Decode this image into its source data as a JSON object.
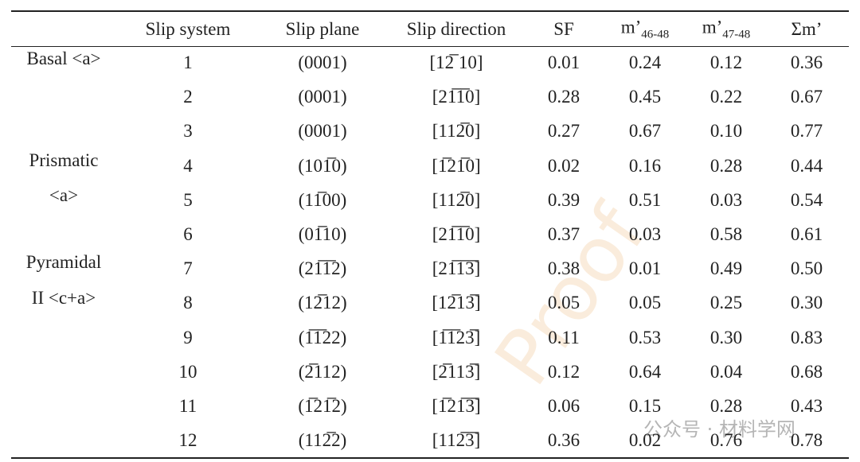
{
  "table": {
    "header": [
      {
        "text": "Slip system"
      },
      {
        "text": "Slip plane"
      },
      {
        "text": "Slip direction"
      },
      {
        "text": "SF"
      },
      {
        "text": "m’",
        "sub": "46-48"
      },
      {
        "text": "m’",
        "sub": "47-48"
      },
      {
        "text": "Σm’"
      }
    ],
    "groups": [
      {
        "lines": [
          "Basal <a>"
        ]
      },
      {
        "lines": [
          "Prismatic",
          "<a>"
        ]
      },
      {
        "lines": [
          "Pyramidal",
          "II <c+a>"
        ]
      }
    ],
    "rows": [
      [
        "1",
        "(0001)",
        "[12̅ 10]",
        "0.01",
        "0.24",
        "0.12",
        "0.36"
      ],
      [
        "2",
        "(0001)",
        "[21̅1̅0]",
        "0.28",
        "0.45",
        "0.22",
        "0.67"
      ],
      [
        "3",
        "(0001)",
        "[112̅0]",
        "0.27",
        "0.67",
        "0.10",
        "0.77"
      ],
      [
        "4",
        "(101̅0)",
        "[1̅21̅0]",
        "0.02",
        "0.16",
        "0.28",
        "0.44"
      ],
      [
        "5",
        "(11̅00)",
        "[112̅0]",
        "0.39",
        "0.51",
        "0.03",
        "0.54"
      ],
      [
        "6",
        "(01̅10)",
        "[21̅1̅0]",
        "0.37",
        "0.03",
        "0.58",
        "0.61"
      ],
      [
        "7",
        "(21̅1̅2)",
        "[21̅1̅3̅]",
        "0.38",
        "0.01",
        "0.49",
        "0.50"
      ],
      [
        "8",
        "(12̅12)",
        "[12̅13̅]",
        "0.05",
        "0.05",
        "0.25",
        "0.30"
      ],
      [
        "9",
        "(1̅1̅22)",
        "[1̅1̅23̅]",
        "0.11",
        "0.53",
        "0.30",
        "0.83"
      ],
      [
        "10",
        "(2̅112)",
        "[2̅113̅]",
        "0.12",
        "0.64",
        "0.04",
        "0.68"
      ],
      [
        "11",
        "(1̅21̅2)",
        "[1̅21̅3̅]",
        "0.06",
        "0.15",
        "0.28",
        "0.43"
      ],
      [
        "12",
        "(112̅2)",
        "[112̅3̅]",
        "0.36",
        "0.02",
        "0.76",
        "0.78"
      ]
    ]
  },
  "watermarks": [
    "Proof",
    "公众号 · 材料学网"
  ]
}
